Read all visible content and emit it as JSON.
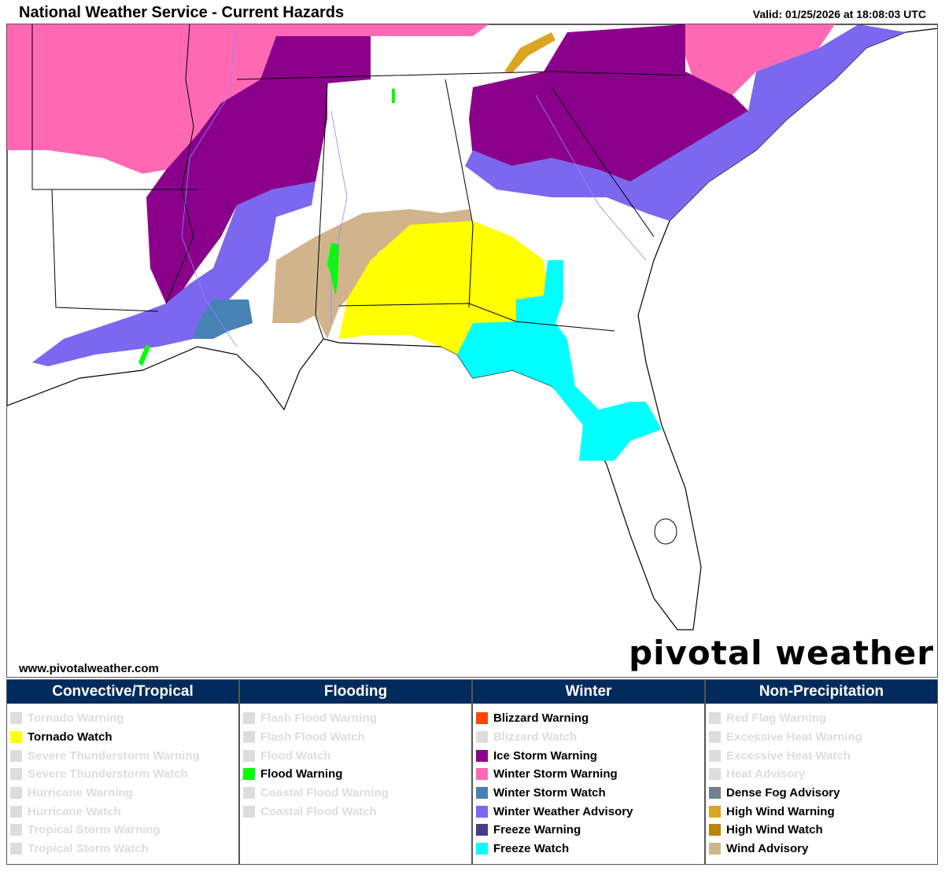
{
  "header": {
    "title": "National Weather Service - Current Hazards",
    "valid": "Valid: 01/25/2026 at 18:08:03 UTC"
  },
  "footer": {
    "site": "www.pivotalweather.com",
    "logo": "pivotal weather"
  },
  "map": {
    "land": "#ffffff",
    "border": "#000000",
    "rivers": "#8a8aff"
  },
  "legend": [
    {
      "title": "Convective/Tropical",
      "items": [
        {
          "label": "Tornado Warning",
          "color": "#dddddd",
          "active": false
        },
        {
          "label": "Tornado Watch",
          "color": "#ffff00",
          "active": true
        },
        {
          "label": "Severe Thunderstorm Warning",
          "color": "#dddddd",
          "active": false
        },
        {
          "label": "Severe Thunderstorm Watch",
          "color": "#dddddd",
          "active": false
        },
        {
          "label": "Hurricane Warning",
          "color": "#dddddd",
          "active": false
        },
        {
          "label": "Hurricane Watch",
          "color": "#dddddd",
          "active": false
        },
        {
          "label": "Tropical Storm Warning",
          "color": "#dddddd",
          "active": false
        },
        {
          "label": "Tropical Storm Watch",
          "color": "#dddddd",
          "active": false
        }
      ]
    },
    {
      "title": "Flooding",
      "items": [
        {
          "label": "Flash Flood Warning",
          "color": "#dddddd",
          "active": false
        },
        {
          "label": "Flash Flood Watch",
          "color": "#dddddd",
          "active": false
        },
        {
          "label": "Flood Watch",
          "color": "#dddddd",
          "active": false
        },
        {
          "label": "Flood Warning",
          "color": "#00ff00",
          "active": true
        },
        {
          "label": "Coastal Flood Warning",
          "color": "#dddddd",
          "active": false
        },
        {
          "label": "Coastal Flood Watch",
          "color": "#dddddd",
          "active": false
        }
      ]
    },
    {
      "title": "Winter",
      "items": [
        {
          "label": "Blizzard Warning",
          "color": "#ff4500",
          "active": true
        },
        {
          "label": "Blizzard Watch",
          "color": "#dddddd",
          "active": false
        },
        {
          "label": "Ice Storm Warning",
          "color": "#8b008b",
          "active": true
        },
        {
          "label": "Winter Storm Warning",
          "color": "#ff69b4",
          "active": true
        },
        {
          "label": "Winter Storm Watch",
          "color": "#4682b4",
          "active": true
        },
        {
          "label": "Winter Weather Advisory",
          "color": "#7b68ee",
          "active": true
        },
        {
          "label": "Freeze Warning",
          "color": "#483d8b",
          "active": true
        },
        {
          "label": "Freeze Watch",
          "color": "#00ffff",
          "active": true
        }
      ]
    },
    {
      "title": "Non-Precipitation",
      "items": [
        {
          "label": "Red Flag Warning",
          "color": "#dddddd",
          "active": false
        },
        {
          "label": "Excessive Heat Warning",
          "color": "#dddddd",
          "active": false
        },
        {
          "label": "Excessive Heat Watch",
          "color": "#dddddd",
          "active": false
        },
        {
          "label": "Heat Advisory",
          "color": "#dddddd",
          "active": false
        },
        {
          "label": "Dense Fog Advisory",
          "color": "#708090",
          "active": true
        },
        {
          "label": "High Wind Warning",
          "color": "#daa520",
          "active": true
        },
        {
          "label": "High Wind Watch",
          "color": "#b8860b",
          "active": true
        },
        {
          "label": "Wind Advisory",
          "color": "#d2b48c",
          "active": true
        }
      ]
    }
  ]
}
